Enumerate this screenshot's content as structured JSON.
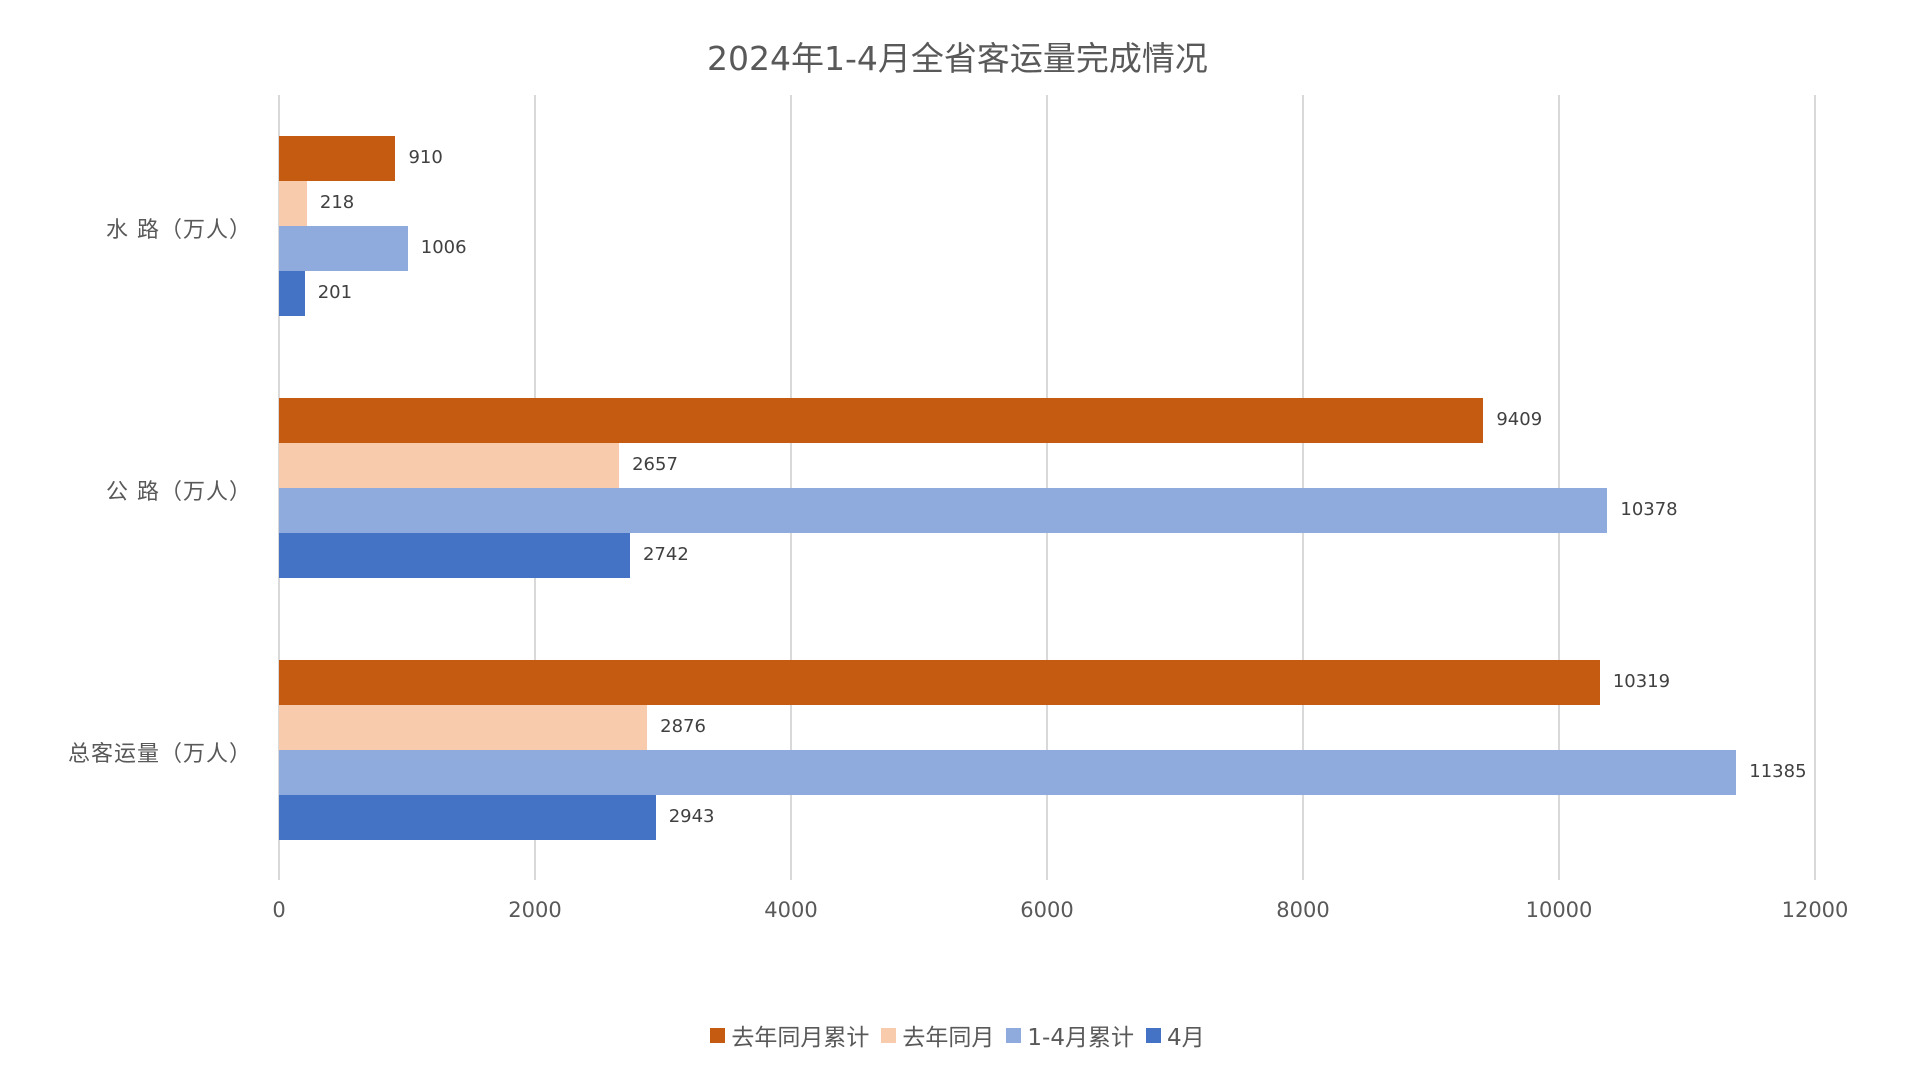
{
  "chart_data": {
    "type": "bar",
    "orientation": "horizontal",
    "title": "2024年1-4月全省客运量完成情况",
    "xlabel": "",
    "ylabel": "",
    "xlim": [
      0,
      12000
    ],
    "x_ticks": [
      "0",
      "2000",
      "4000",
      "6000",
      "8000",
      "10000",
      "12000"
    ],
    "grid": true,
    "legend_position": "bottom",
    "categories": [
      "水 路（万人）",
      "公 路（万人）",
      "总客运量（万人）"
    ],
    "series": [
      {
        "name": "去年同月累计",
        "color": "#C55A11",
        "values": [
          910,
          9409,
          10319
        ]
      },
      {
        "name": "去年同月",
        "color": "#F8CBAD",
        "values": [
          218,
          2657,
          2876
        ]
      },
      {
        "name": "1-4月累计",
        "color": "#8FAADC",
        "values": [
          1006,
          10378,
          11385
        ]
      },
      {
        "name": "4月",
        "color": "#4472C4",
        "values": [
          201,
          2742,
          2943
        ]
      }
    ],
    "value_labels": [
      [
        "910",
        "218",
        "1006",
        "201"
      ],
      [
        "9409",
        "2657",
        "10378",
        "2742"
      ],
      [
        "10319",
        "2876",
        "11385",
        "2943"
      ]
    ]
  }
}
